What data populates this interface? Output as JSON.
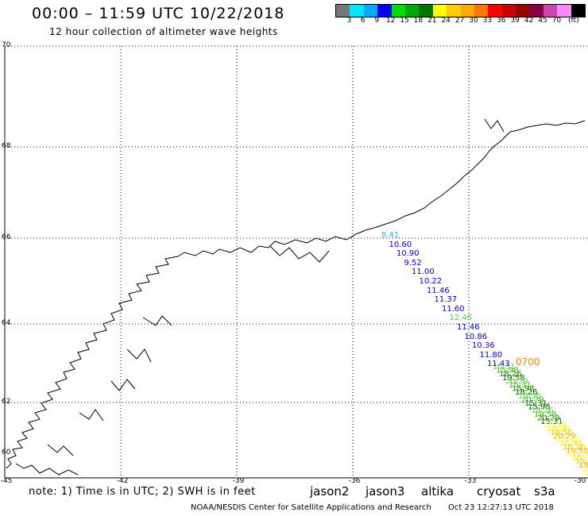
{
  "header": {
    "title": "00:00 – 11:59 UTC 10/22/2018",
    "subtitle": "12 hour collection of altimeter wave heights"
  },
  "color_scale": {
    "colors": [
      "#777777",
      "#00e5ff",
      "#00aaff",
      "#0000ff",
      "#00dd00",
      "#00aa00",
      "#007700",
      "#ffff00",
      "#ffcc00",
      "#ffaa00",
      "#ff7700",
      "#ff0000",
      "#cc0000",
      "#990000",
      "#880044",
      "#cc44aa",
      "#ff88ff",
      "#000000"
    ],
    "labels": [
      "3",
      "6",
      "9",
      "12",
      "15",
      "18",
      "21",
      "24",
      "27",
      "30",
      "33",
      "36",
      "39",
      "42",
      "45",
      "70",
      "(ft)"
    ]
  },
  "axes": {
    "lat_labels": [
      "70",
      "68",
      "66",
      "64",
      "62",
      "60"
    ],
    "lon_labels": [
      "-45",
      "-42",
      "-39",
      "-36",
      "-33",
      "-30"
    ]
  },
  "jason2_track": [
    {
      "v": "8.41",
      "c": "#33aaff"
    },
    {
      "v": "10.60",
      "c": "#0000cc"
    },
    {
      "v": "10.90",
      "c": "#0000cc"
    },
    {
      "v": "9.52",
      "c": "#0000cc"
    },
    {
      "v": "11.00",
      "c": "#0000cc"
    },
    {
      "v": "10.22",
      "c": "#0000cc"
    },
    {
      "v": "11.46",
      "c": "#0000cc"
    },
    {
      "v": "11.37",
      "c": "#0000cc"
    },
    {
      "v": "11.60",
      "c": "#0000cc"
    },
    {
      "v": "12.46",
      "c": "#55cc55"
    },
    {
      "v": "11.46",
      "c": "#0000cc"
    },
    {
      "v": "10.86",
      "c": "#0000cc"
    },
    {
      "v": "10.36",
      "c": "#0000cc"
    },
    {
      "v": "11.80",
      "c": "#0000cc"
    },
    {
      "v": "11.43",
      "c": "#0000cc"
    }
  ],
  "time_label": "0700",
  "dense_track_labels": [
    "15.31",
    "15.98",
    "18.26",
    "19.58",
    "20.29"
  ],
  "footer": {
    "note": "note: 1) Time is in UTC; 2) SWH is in feet",
    "legend": [
      {
        "name": "jason2",
        "color": "#0000cc"
      },
      {
        "name": "jason3",
        "color": "#009900"
      },
      {
        "name": "altika",
        "color": "#ff9900"
      },
      {
        "name": "cryosat",
        "color": "#dd0000"
      },
      {
        "name": "s3a",
        "color": "#880000"
      }
    ],
    "credit": "NOAA/NESDIS Center for Satellite Applications and Research",
    "timestamp": "Oct 23 12:27:13 UTC 2018"
  }
}
